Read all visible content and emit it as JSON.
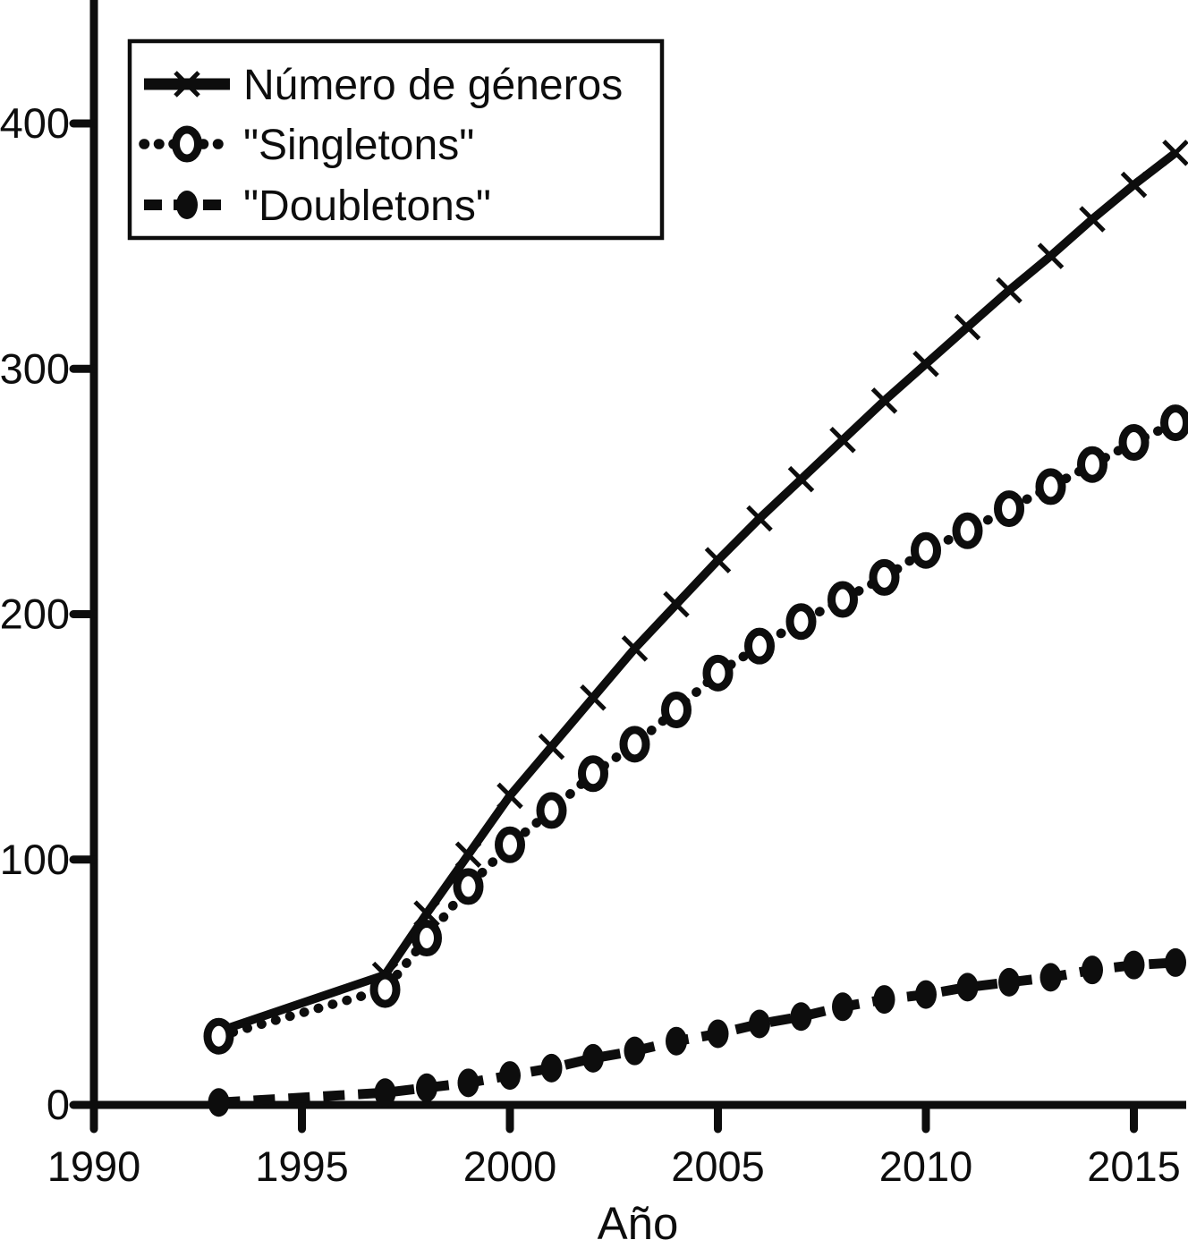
{
  "chart_data": {
    "type": "line",
    "title": "",
    "xlabel": "Año",
    "ylabel": "",
    "x_tick_labels": [
      "1990",
      "1995",
      "2000",
      "2005",
      "2010",
      "2015"
    ],
    "x_tick_values": [
      1990,
      1995,
      2000,
      2005,
      2010,
      2015
    ],
    "y_tick_labels": [
      "0",
      "100",
      "200",
      "300",
      "400"
    ],
    "y_tick_values": [
      0,
      100,
      200,
      300,
      400
    ],
    "xlim": [
      1990,
      2016.3
    ],
    "ylim": [
      0,
      448
    ],
    "grid": false,
    "legend_position": "top-left",
    "ink_color": "#0d0d0d",
    "background_color": "#ffffff",
    "x": [
      1993,
      1997,
      1998,
      1999,
      2000,
      2001,
      2002,
      2003,
      2004,
      2005,
      2006,
      2007,
      2008,
      2009,
      2010,
      2011,
      2012,
      2013,
      2014,
      2015,
      2016
    ],
    "series": [
      {
        "name": "Número de géneros",
        "marker": "x-cross",
        "line_style": "solid",
        "values": [
          30,
          53,
          78,
          102,
          126,
          146,
          166,
          186,
          204,
          222,
          239,
          255,
          271,
          287,
          302,
          317,
          332,
          346,
          361,
          375,
          388
        ]
      },
      {
        "name": "\"Singletons\"",
        "marker": "open-circle",
        "line_style": "dotted",
        "values": [
          28,
          47,
          68,
          89,
          106,
          120,
          135,
          147,
          161,
          176,
          187,
          197,
          206,
          215,
          226,
          234,
          243,
          252,
          261,
          270,
          278
        ]
      },
      {
        "name": "\"Doubletons\"",
        "marker": "filled-circle",
        "line_style": "dashed",
        "values": [
          1,
          5,
          7,
          9,
          12,
          15,
          19,
          22,
          26,
          29,
          33,
          36,
          40,
          43,
          45,
          48,
          50,
          52,
          55,
          57,
          58
        ]
      }
    ]
  }
}
